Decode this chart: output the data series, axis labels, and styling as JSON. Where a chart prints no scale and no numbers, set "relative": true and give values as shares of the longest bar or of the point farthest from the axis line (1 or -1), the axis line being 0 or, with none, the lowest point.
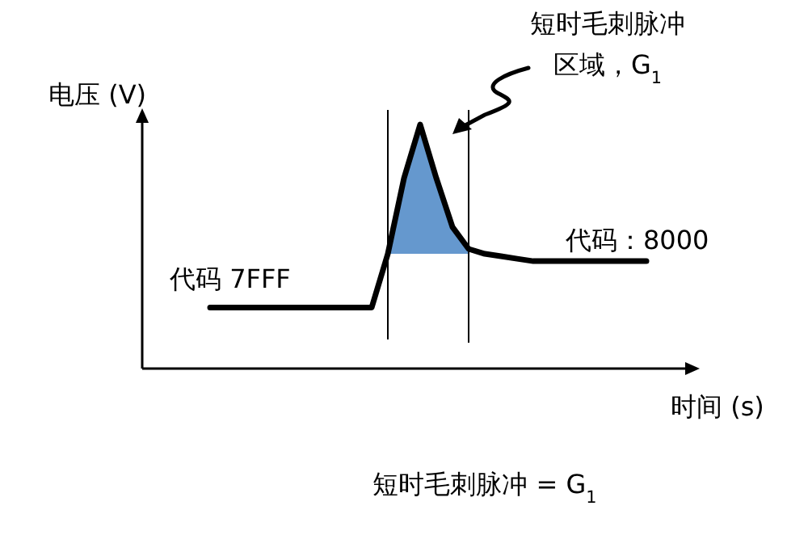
{
  "chart_data": {
    "type": "line",
    "relative": true,
    "ylabel": "电压 (V)",
    "xlabel": "时间 (s)",
    "categories": [
      null,
      null,
      null,
      null,
      null,
      null,
      null,
      null,
      null,
      null,
      null,
      null,
      null,
      null,
      null,
      null,
      null,
      null,
      null,
      null,
      null,
      null,
      null,
      null,
      null,
      null,
      null,
      null
    ],
    "series": [
      {
        "color": "#000000",
        "values": [
          0.25,
          0.25,
          0.25,
          0.25,
          0.25,
          0.25,
          0.25,
          0.25,
          0.25,
          0.25,
          0.25,
          0.47,
          0.78,
          1,
          0.78,
          0.58,
          0.49,
          0.47,
          0.46,
          0.45,
          0.44,
          0.44,
          0.44,
          0.44,
          0.44,
          0.44,
          0.44,
          0.44
        ]
      }
    ],
    "annotations": [
      "代码  7FFF",
      "代码：8000",
      "短时毛刺脉冲区域，G$_{1}$",
      "短时毛刺脉冲 = G$_{1}$"
    ],
    "grid": false,
    "legend": false
  }
}
